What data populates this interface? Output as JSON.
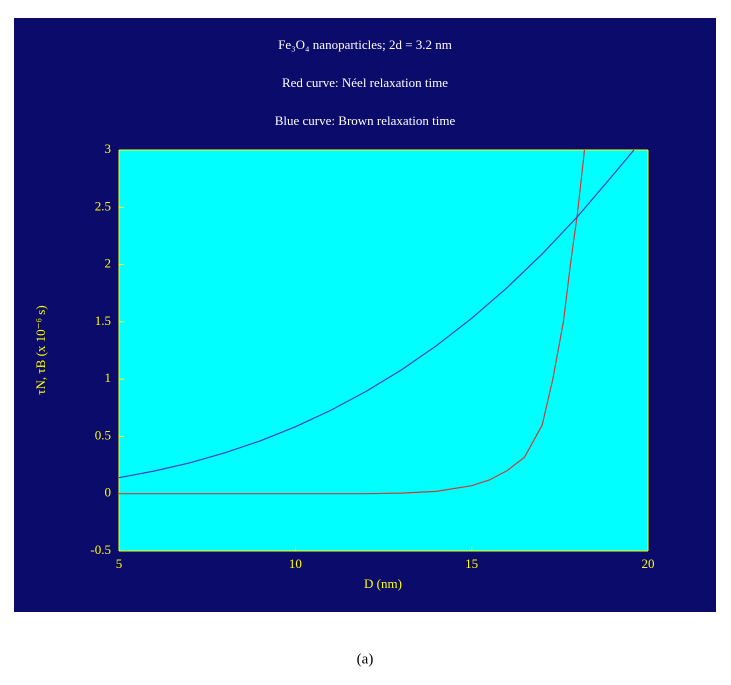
{
  "chart_data": {
    "type": "line",
    "title_lines": [
      "Fe₃O₄ nanoparticles;  2d = 3.2 nm",
      "Red curve:  Néel relaxation time",
      "Blue curve:  Brown relaxation time"
    ],
    "x_label": "D (nm)",
    "y_label": "τN, τB (x 10⁻⁶ s)",
    "xlim": [
      5,
      20
    ],
    "xticks": [
      5,
      10,
      15,
      20
    ],
    "ylim": [
      -0.5,
      3
    ],
    "yticks": [
      -0.5,
      0,
      0.5,
      1,
      1.5,
      2,
      2.5,
      3
    ],
    "series": [
      {
        "name": "Néel relaxation time",
        "color": "#c83c3c",
        "x": [
          5,
          6,
          7,
          8,
          9,
          10,
          11,
          12,
          13,
          14,
          15,
          15.5,
          16,
          16.5,
          17,
          17.3,
          17.6,
          17.8,
          18,
          18.2
        ],
        "values": [
          0,
          0,
          0,
          0,
          0,
          0,
          0,
          0,
          0.005,
          0.02,
          0.07,
          0.12,
          0.2,
          0.32,
          0.6,
          1.0,
          1.5,
          2.0,
          2.45,
          3.0
        ]
      },
      {
        "name": "Brown relaxation time",
        "color": "#3c3cc8",
        "x": [
          5,
          6,
          7,
          8,
          9,
          10,
          11,
          12,
          13,
          14,
          15,
          16,
          17,
          18,
          19,
          19.6
        ],
        "values": [
          0.14,
          0.198,
          0.269,
          0.357,
          0.461,
          0.584,
          0.727,
          0.892,
          1.079,
          1.292,
          1.531,
          1.797,
          2.093,
          2.419,
          2.778,
          3.0
        ]
      }
    ],
    "caption": "(a)"
  }
}
